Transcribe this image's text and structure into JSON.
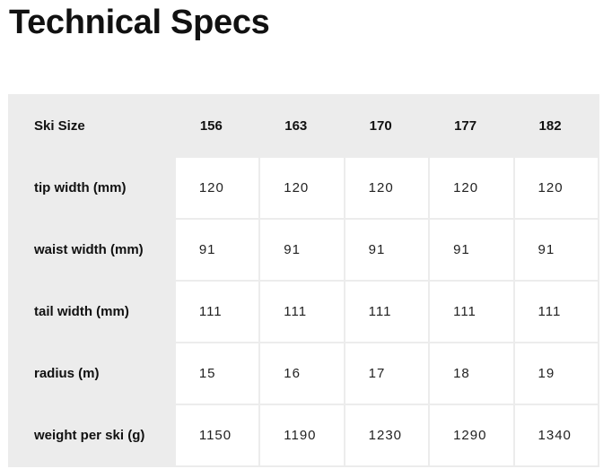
{
  "title": "Technical Specs",
  "table": {
    "header": [
      "Ski Size",
      "156",
      "163",
      "170",
      "177",
      "182"
    ],
    "rows": [
      {
        "label": "tip width (mm)",
        "values": [
          "120",
          "120",
          "120",
          "120",
          "120"
        ]
      },
      {
        "label": "waist width (mm)",
        "values": [
          "91",
          "91",
          "91",
          "91",
          "91"
        ]
      },
      {
        "label": "tail width (mm)",
        "values": [
          "111",
          "111",
          "111",
          "111",
          "111"
        ]
      },
      {
        "label": "radius (m)",
        "values": [
          "15",
          "16",
          "17",
          "18",
          "19"
        ]
      },
      {
        "label": "weight per ski (g)",
        "values": [
          "1150",
          "1190",
          "1230",
          "1290",
          "1340"
        ]
      }
    ]
  }
}
